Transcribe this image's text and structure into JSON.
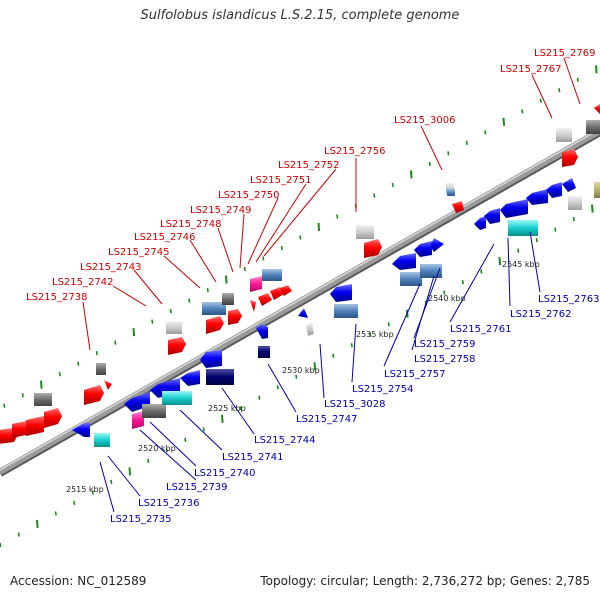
{
  "title": "Sulfolobus islandicus L.S.2.15, complete genome",
  "footer": {
    "accession": "Accession: NC_012589",
    "summary": "Topology: circular; Length: 2,736,272 bp; Genes: 2,785"
  },
  "colors": {
    "top_label": "#cc0000",
    "bottom_label": "#0000aa",
    "backbone": "#8a8a8a",
    "tick_green": "#1a8a1a"
  },
  "kbp_markers": [
    "2515 kbp",
    "2520 kbp",
    "2525 kbp",
    "2530 kbp",
    "2535 kbp",
    "2540 kbp",
    "2545 kbp"
  ],
  "top_labels": [
    "LS215_2738",
    "LS215_2742",
    "LS215_2743",
    "LS215_2745",
    "LS215_2746",
    "LS215_2748",
    "LS215_2749",
    "LS215_2750",
    "LS215_2751",
    "LS215_2752",
    "LS215_2756",
    "LS215_3006",
    "LS215_2767",
    "LS215_2769"
  ],
  "bottom_labels": [
    "LS215_2735",
    "LS215_2736",
    "LS215_2739",
    "LS215_2740",
    "LS215_2741",
    "LS215_2744",
    "LS215_2747",
    "LS215_3028",
    "LS215_2754",
    "LS215_2757",
    "LS215_2758",
    "LS215_2759",
    "LS215_2761",
    "LS215_2762",
    "LS215_2763"
  ]
}
